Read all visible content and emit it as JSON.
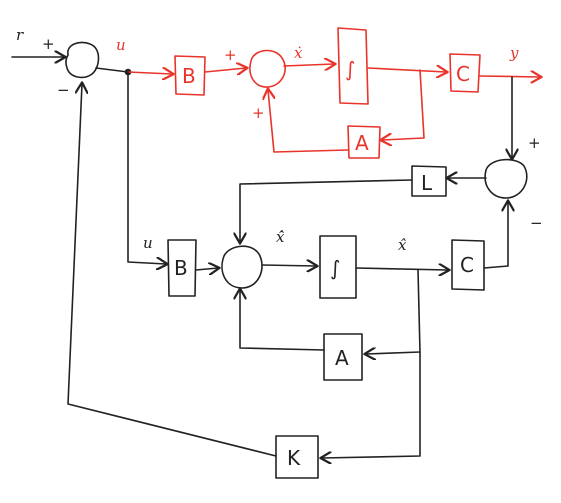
{
  "colors": {
    "plant": "#e8342b",
    "observer": "#222222",
    "background": "#ffffff"
  },
  "plant": {
    "signals": {
      "r": "r",
      "u": "u",
      "x_dot": "ẋ",
      "y": "y"
    },
    "blocks": {
      "B": "B",
      "integrator": "∫",
      "C": "C",
      "A": "A"
    },
    "signs": {
      "input_plus": "+",
      "input_minus": "−",
      "sum_plus": "+",
      "sum_feedback": "+"
    }
  },
  "observer": {
    "signals": {
      "u": "u",
      "xhat_dot": "x̂̇",
      "xhat": "x̂"
    },
    "blocks": {
      "B": "B",
      "integrator": "∫",
      "C": "C",
      "A": "A",
      "L": "L",
      "K": "K"
    },
    "signs": {
      "error_plus": "+",
      "error_minus": "−"
    }
  }
}
